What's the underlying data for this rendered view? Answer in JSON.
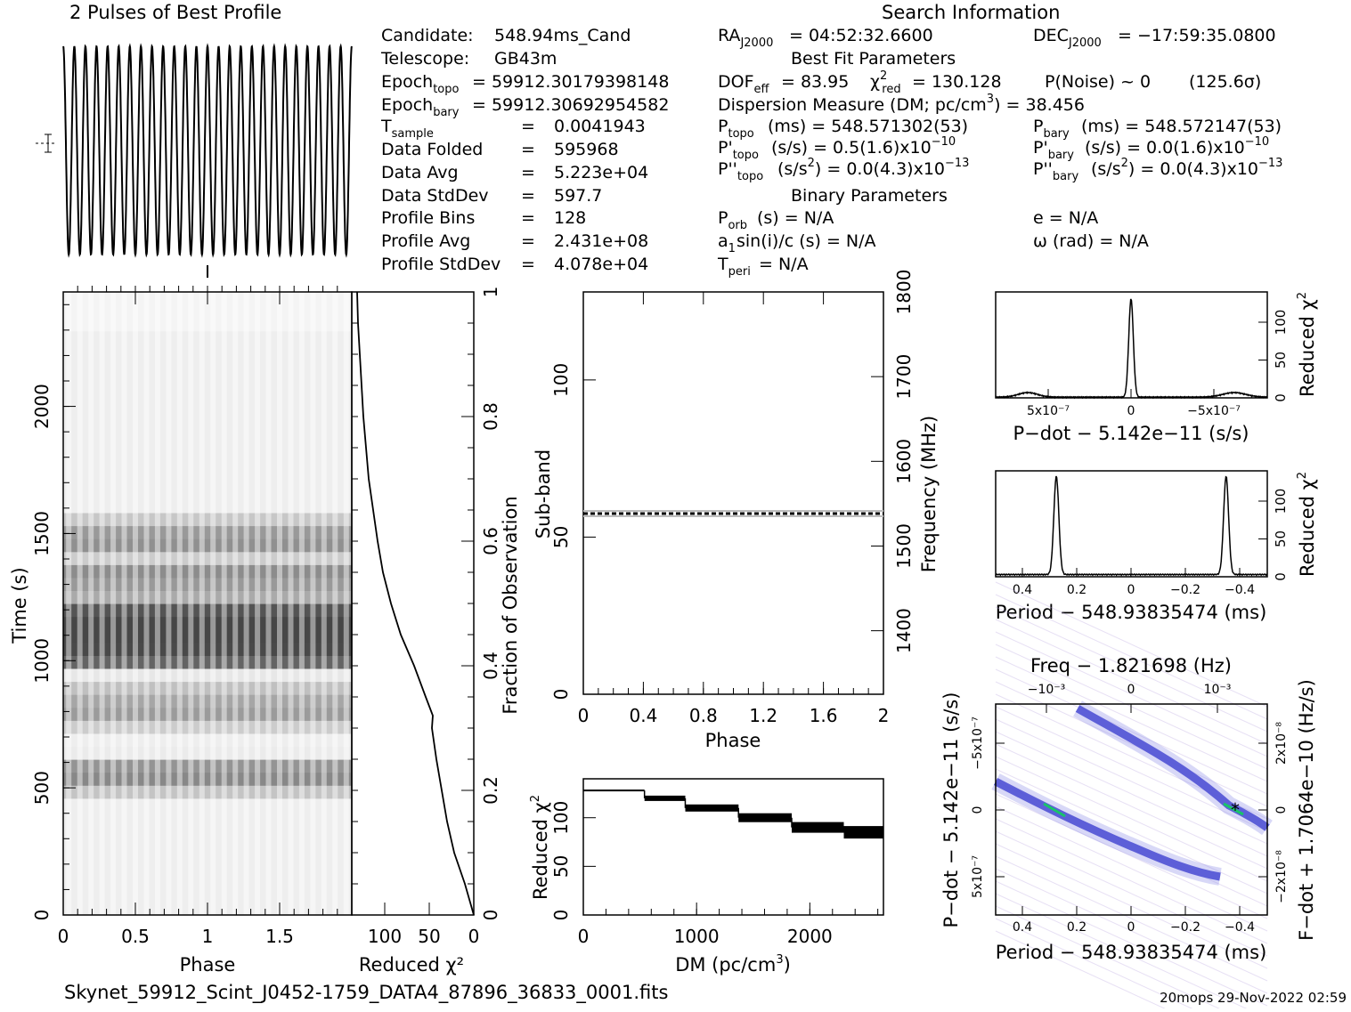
{
  "page": {
    "pulse_title": "2 Pulses of Best Profile",
    "search_title": "Search Information",
    "filename": "Skynet_59912_Scint_J0452-1759_DATA4_87896_36833_0001.fits",
    "footer": "20mops 29-Nov-2022 02:59"
  },
  "info": {
    "left": [
      {
        "label": "Candidate:",
        "value": "548.94ms_Cand"
      },
      {
        "label": "Telescope:",
        "value": "GB43m"
      },
      {
        "label": "Epoch",
        "sub": "topo",
        "value": "= 59912.30179398148"
      },
      {
        "label": "Epoch",
        "sub": "bary",
        "value": "= 59912.30692954582"
      },
      {
        "label": "T",
        "sub": "sample",
        "value": "0.0041943"
      },
      {
        "label": "Data Folded",
        "value": "595968"
      },
      {
        "label": "Data Avg",
        "value": "5.223e+04"
      },
      {
        "label": "Data StdDev",
        "value": "597.7"
      },
      {
        "label": "Profile Bins",
        "value": "128"
      },
      {
        "label": "Profile Avg",
        "value": "2.431e+08"
      },
      {
        "label": "Profile StdDev",
        "value": "4.078e+04"
      }
    ],
    "ra": "= 04:52:32.6600",
    "dec": "= −17:59:35.0800",
    "best_fit_header": "Best Fit Parameters",
    "dof": "= 83.95",
    "chi2": "= 130.128",
    "pnoise": "P(Noise) ~ 0",
    "sigma": "(125.6σ)",
    "dm_line": "Dispersion Measure (DM; pc/cm",
    "dm_value": ") = 38.456",
    "ptopo": "(ms) =  548.571302(53)",
    "pbary": "(ms) =  548.572147(53)",
    "pdtopo": "(s/s) =  0.5(1.6)x10",
    "pdtopo_exp": "−10",
    "pdbary": "(s/s) = 0.0(1.6)x10",
    "pdbary_exp": "−10",
    "pddtopo": "(s/s",
    "pddtopo_rest": ") = 0.0(4.3)x10",
    "pddtopo_exp": "−13",
    "pddbary": "(s/s",
    "pddbary_rest": ") = 0.0(4.3)x10",
    "pddbary_exp": "−13",
    "binary_header": "Binary Parameters",
    "porb": "(s) = N/A",
    "a1": "sin(i)/c (s) = N/A",
    "tperi": "= N/A",
    "e": "e = N/A",
    "omega": "ω (rad) = N/A"
  },
  "chart_data": [
    {
      "type": "line",
      "name": "pulse-profile",
      "title": "2 Pulses of Best Profile",
      "x_range": [
        0,
        2
      ],
      "cycles": 26,
      "note": "profile shown as near-sinusoidal oscillation across 2 pulses"
    },
    {
      "type": "heatmap",
      "name": "time-phase",
      "xlabel": "Phase",
      "ylabel": "Time (s)",
      "xticks": [
        "0",
        "0.5",
        "1",
        "1.5"
      ],
      "yticks": [
        "0",
        "500",
        "1000",
        "1500",
        "2000"
      ],
      "xlim": [
        0,
        2
      ],
      "ylim": [
        0,
        2450
      ],
      "dark_bands_s": [
        520,
        580,
        780,
        860,
        1000,
        1050,
        1100,
        1150,
        1200,
        1280,
        1350,
        1450,
        1520
      ],
      "x2_label": "Reduced χ²",
      "x2_ticks": [
        "100",
        "50",
        "0"
      ],
      "y2_label": "Fraction of Observation",
      "y2_ticks": [
        "0",
        "0.2",
        "0.4",
        "0.6",
        "0.8",
        "1"
      ],
      "chi2_curve": {
        "frac": [
          0,
          0.05,
          0.1,
          0.15,
          0.2,
          0.25,
          0.3,
          0.32,
          0.35,
          0.4,
          0.45,
          0.5,
          0.55,
          0.6,
          0.65,
          0.7,
          0.75,
          0.8,
          0.85,
          0.9,
          0.95,
          1.0
        ],
        "chi2": [
          0,
          10,
          22,
          30,
          36,
          42,
          47,
          46,
          54,
          67,
          82,
          93,
          102,
          108,
          113,
          118,
          121,
          124,
          126,
          128,
          130,
          131
        ]
      }
    },
    {
      "type": "heatmap",
      "name": "subband-phase",
      "xlabel": "Phase",
      "ylabel": "Sub-band",
      "y2label": "Frequency (MHz)",
      "xticks": [
        "0",
        "0.4",
        "0.8",
        "1.2",
        "1.6",
        "2"
      ],
      "yticks": [
        "0",
        "50",
        "100"
      ],
      "y2ticks": [
        "1400",
        "1500",
        "1600",
        "1700",
        "1800"
      ],
      "active_subband": 57
    },
    {
      "type": "line",
      "name": "dm-chi2",
      "xlabel": "DM (pc/cm³)",
      "ylabel": "Reduced χ²",
      "xticks": [
        "0",
        "1000",
        "2000"
      ],
      "yticks": [
        "0",
        "50",
        "100"
      ],
      "xlim": [
        0,
        2650
      ],
      "ylim": [
        0,
        140
      ],
      "x": [
        0,
        540,
        900,
        1370,
        1840,
        2300
      ],
      "y": [
        128,
        120,
        110,
        100,
        90,
        85
      ]
    },
    {
      "type": "line",
      "name": "pdot-chi2",
      "xlabel": "P−dot − 5.142e−11 (s/s)",
      "ylabel": "Reduced χ²",
      "xticks": [
        "5x10⁻⁷",
        "0",
        "−5x10⁻⁷"
      ],
      "yticks": [
        "0",
        "50",
        "100"
      ],
      "peak_value": 130
    },
    {
      "type": "line",
      "name": "period-chi2",
      "xlabel": "Period − 548.93835474 (ms)",
      "ylabel": "Reduced χ²",
      "xticks": [
        "0.4",
        "0.2",
        "0",
        "−0.2",
        "−0.4"
      ],
      "yticks": [
        "0",
        "50",
        "100"
      ],
      "peak_periods": [
        0.275,
        -0.35
      ],
      "peak_value": 130
    },
    {
      "type": "heatmap",
      "name": "period-pdot",
      "xlabel": "Period − 548.93835474 (ms)",
      "ylabel": "P−dot − 5.142e−11 (s/s)",
      "top_label": "Freq − 1.821698 (Hz)",
      "right_label": "F−dot + 1.7064e−10 (Hz/s)",
      "xticks": [
        "0.4",
        "0.2",
        "0",
        "−0.2",
        "−0.4"
      ],
      "yticks": [
        "−5x10⁻⁷",
        "0",
        "5x10⁻⁷"
      ],
      "top_ticks": [
        "−10⁻³",
        "0",
        "10⁻³"
      ],
      "right_ticks": [
        "2x10⁻⁸",
        "0",
        "−2x10⁻⁸"
      ]
    }
  ]
}
